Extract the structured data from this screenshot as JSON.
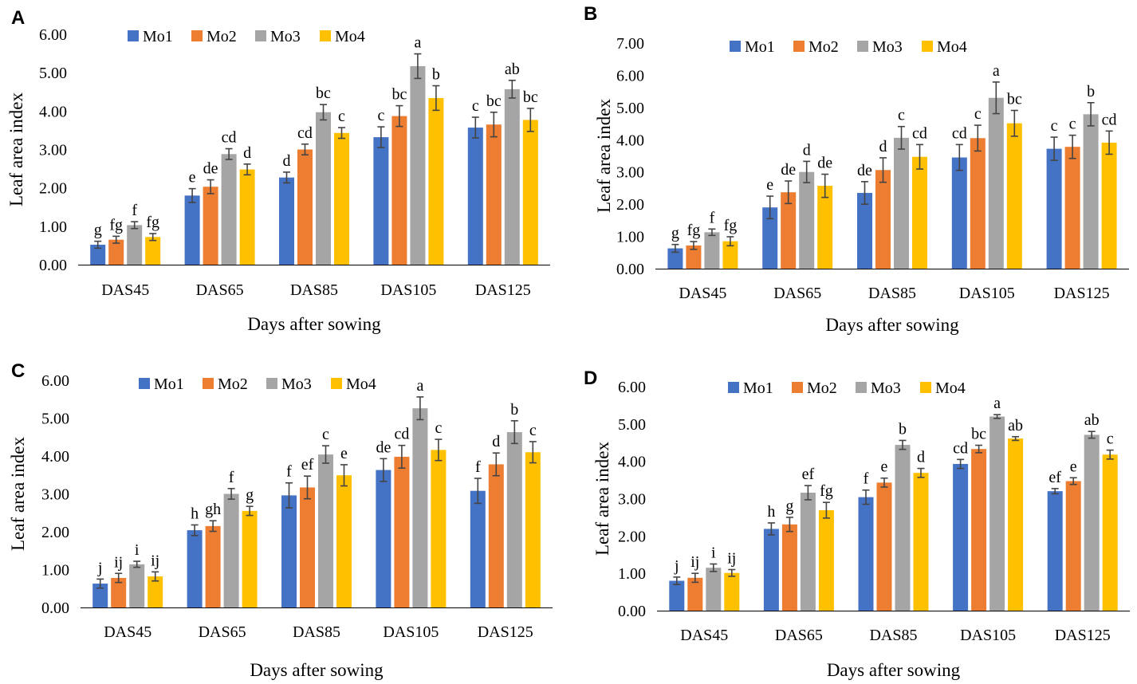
{
  "colors": {
    "Mo1": "#4472C4",
    "Mo2": "#ED7D31",
    "Mo3": "#A5A5A5",
    "Mo4": "#FFC000",
    "axis": "#000000",
    "errorbar": "#444444"
  },
  "chart_data": [
    {
      "panel": "A",
      "type": "bar",
      "xlabel": "Days after sowing",
      "ylabel": "Leaf area index",
      "categories": [
        "DAS45",
        "DAS65",
        "DAS85",
        "DAS105",
        "DAS125"
      ],
      "yticks": [
        "0.00",
        "1.00",
        "2.00",
        "3.00",
        "4.00",
        "5.00",
        "6.00"
      ],
      "ylim": [
        0,
        6
      ],
      "legend": "top-center",
      "series": [
        {
          "name": "Mo1",
          "values": [
            0.52,
            1.8,
            2.27,
            3.32,
            3.57
          ],
          "errors": [
            0.09,
            0.18,
            0.14,
            0.27,
            0.27
          ],
          "letters": [
            "g",
            "e",
            "d",
            "c",
            "c"
          ]
        },
        {
          "name": "Mo2",
          "values": [
            0.65,
            2.03,
            3.0,
            3.87,
            3.65
          ],
          "errors": [
            0.09,
            0.18,
            0.14,
            0.27,
            0.32
          ],
          "letters": [
            "fg",
            "de",
            "cd",
            "bc",
            "bc"
          ]
        },
        {
          "name": "Mo3",
          "values": [
            1.03,
            2.88,
            3.97,
            5.17,
            4.57
          ],
          "errors": [
            0.09,
            0.14,
            0.2,
            0.32,
            0.23
          ],
          "letters": [
            "f",
            "cd",
            "bc",
            "a",
            "ab"
          ]
        },
        {
          "name": "Mo4",
          "values": [
            0.72,
            2.48,
            3.43,
            4.34,
            3.77
          ],
          "errors": [
            0.09,
            0.14,
            0.14,
            0.32,
            0.3
          ],
          "letters": [
            "fg",
            "d",
            "c",
            "b",
            "bc"
          ]
        }
      ]
    },
    {
      "panel": "B",
      "type": "bar",
      "xlabel": "Days after sowing",
      "ylabel": "Leaf area index",
      "categories": [
        "DAS45",
        "DAS65",
        "DAS85",
        "DAS105",
        "DAS125"
      ],
      "yticks": [
        "0.00",
        "1.00",
        "2.00",
        "3.00",
        "4.00",
        "5.00",
        "6.00",
        "7.00"
      ],
      "ylim": [
        0,
        7
      ],
      "legend": "top-center",
      "series": [
        {
          "name": "Mo1",
          "values": [
            0.63,
            1.9,
            2.35,
            3.45,
            3.72
          ],
          "errors": [
            0.12,
            0.35,
            0.35,
            0.4,
            0.36
          ],
          "letters": [
            "g",
            "e",
            "de",
            "cd",
            "c"
          ]
        },
        {
          "name": "Mo2",
          "values": [
            0.72,
            2.37,
            3.06,
            4.05,
            3.78
          ],
          "errors": [
            0.12,
            0.35,
            0.38,
            0.4,
            0.36
          ],
          "letters": [
            "fg",
            "de",
            "d",
            "c",
            "c"
          ]
        },
        {
          "name": "Mo3",
          "values": [
            1.13,
            3.0,
            4.06,
            5.3,
            4.79
          ],
          "errors": [
            0.1,
            0.33,
            0.35,
            0.49,
            0.36
          ],
          "letters": [
            "f",
            "d",
            "c",
            "a",
            "b"
          ]
        },
        {
          "name": "Mo4",
          "values": [
            0.85,
            2.57,
            3.47,
            4.51,
            3.91
          ],
          "errors": [
            0.14,
            0.36,
            0.38,
            0.4,
            0.36
          ],
          "letters": [
            "fg",
            "de",
            "cd",
            "bc",
            "cd"
          ]
        }
      ]
    },
    {
      "panel": "C",
      "type": "bar",
      "xlabel": "Days after sowing",
      "ylabel": "Leaf area index",
      "categories": [
        "DAS45",
        "DAS65",
        "DAS85",
        "DAS105",
        "DAS125"
      ],
      "yticks": [
        "0.00",
        "1.00",
        "2.00",
        "3.00",
        "4.00",
        "5.00",
        "6.00"
      ],
      "ylim": [
        0,
        6
      ],
      "legend": "top-center",
      "series": [
        {
          "name": "Mo1",
          "values": [
            0.63,
            2.04,
            2.96,
            3.63,
            3.08
          ],
          "errors": [
            0.12,
            0.14,
            0.33,
            0.3,
            0.33
          ],
          "letters": [
            "j",
            "h",
            "f",
            "de",
            "f"
          ]
        },
        {
          "name": "Mo2",
          "values": [
            0.78,
            2.15,
            3.17,
            3.98,
            3.78
          ],
          "errors": [
            0.12,
            0.14,
            0.3,
            0.3,
            0.3
          ],
          "letters": [
            "ij",
            "gh",
            "ef",
            "cd",
            "d"
          ]
        },
        {
          "name": "Mo3",
          "values": [
            1.14,
            3.0,
            4.04,
            5.26,
            4.63
          ],
          "errors": [
            0.08,
            0.14,
            0.23,
            0.3,
            0.3
          ],
          "letters": [
            "i",
            "f",
            "c",
            "a",
            "b"
          ]
        },
        {
          "name": "Mo4",
          "values": [
            0.82,
            2.55,
            3.49,
            4.16,
            4.1
          ],
          "errors": [
            0.12,
            0.12,
            0.28,
            0.28,
            0.28
          ],
          "letters": [
            "ij",
            "g",
            "e",
            "c",
            "c"
          ]
        }
      ]
    },
    {
      "panel": "D",
      "type": "bar",
      "xlabel": "Days after sowing",
      "ylabel": "Leaf area index",
      "categories": [
        "DAS45",
        "DAS65",
        "DAS85",
        "DAS105",
        "DAS125"
      ],
      "yticks": [
        "0.00",
        "1.00",
        "2.00",
        "3.00",
        "4.00",
        "5.00",
        "6.00"
      ],
      "ylim": [
        0,
        6
      ],
      "legend": "top-center",
      "series": [
        {
          "name": "Mo1",
          "values": [
            0.8,
            2.19,
            3.04,
            3.93,
            3.2
          ],
          "errors": [
            0.1,
            0.16,
            0.19,
            0.12,
            0.07
          ],
          "letters": [
            "j",
            "h",
            "f",
            "cd",
            "ef"
          ]
        },
        {
          "name": "Mo2",
          "values": [
            0.88,
            2.31,
            3.43,
            4.33,
            3.47
          ],
          "errors": [
            0.12,
            0.19,
            0.12,
            0.1,
            0.09
          ],
          "letters": [
            "ij",
            "g",
            "e",
            "bc",
            "e"
          ]
        },
        {
          "name": "Mo3",
          "values": [
            1.15,
            3.16,
            4.44,
            5.2,
            4.71
          ],
          "errors": [
            0.1,
            0.19,
            0.12,
            0.05,
            0.09
          ],
          "letters": [
            "i",
            "ef",
            "b",
            "a",
            "ab"
          ]
        },
        {
          "name": "Mo4",
          "values": [
            1.01,
            2.69,
            3.69,
            4.61,
            4.18
          ],
          "errors": [
            0.09,
            0.21,
            0.12,
            0.05,
            0.12
          ],
          "letters": [
            "ij",
            "fg",
            "d",
            "ab",
            "c"
          ]
        }
      ]
    }
  ]
}
